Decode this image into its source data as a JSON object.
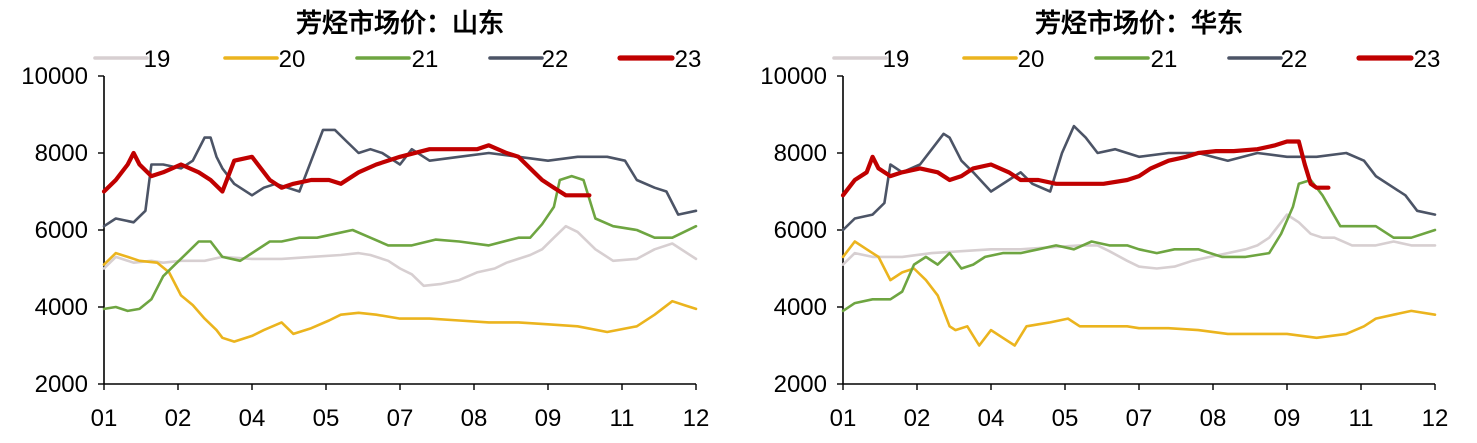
{
  "chart_data": [
    {
      "type": "line",
      "title": "芳烃市场价：山东",
      "xlabel": "",
      "ylabel": "",
      "ylim": [
        2000,
        10000
      ],
      "yticks": [
        "2000",
        "4000",
        "6000",
        "8000",
        "10000"
      ],
      "xticks": [
        "01",
        "02",
        "04",
        "05",
        "07",
        "08",
        "09",
        "11",
        "12"
      ],
      "legend_position": "top",
      "grid": false,
      "series": [
        {
          "name": "19",
          "color": "#d7cfd1",
          "width": 2.6,
          "x": [
            0,
            0.02,
            0.05,
            0.08,
            0.1,
            0.13,
            0.17,
            0.2,
            0.25,
            0.3,
            0.35,
            0.4,
            0.43,
            0.45,
            0.48,
            0.5,
            0.52,
            0.54,
            0.57,
            0.6,
            0.63,
            0.66,
            0.68,
            0.7,
            0.72,
            0.74,
            0.76,
            0.78,
            0.8,
            0.83,
            0.86,
            0.9,
            0.93,
            0.96,
            1.0
          ],
          "y": [
            5000,
            5300,
            5150,
            5200,
            5150,
            5200,
            5200,
            5300,
            5250,
            5250,
            5300,
            5350,
            5400,
            5350,
            5200,
            5000,
            4850,
            4550,
            4600,
            4700,
            4900,
            5000,
            5150,
            5250,
            5350,
            5500,
            5800,
            6100,
            5950,
            5500,
            5200,
            5250,
            5500,
            5650,
            5250
          ]
        },
        {
          "name": "20",
          "color": "#ebb41e",
          "width": 2.6,
          "x": [
            0,
            0.02,
            0.04,
            0.06,
            0.09,
            0.11,
            0.13,
            0.15,
            0.17,
            0.19,
            0.2,
            0.22,
            0.25,
            0.27,
            0.3,
            0.32,
            0.35,
            0.38,
            0.4,
            0.43,
            0.46,
            0.5,
            0.55,
            0.6,
            0.65,
            0.7,
            0.75,
            0.8,
            0.85,
            0.9,
            0.93,
            0.96,
            0.98,
            1.0
          ],
          "y": [
            5100,
            5400,
            5300,
            5200,
            5150,
            4900,
            4300,
            4050,
            3700,
            3400,
            3200,
            3100,
            3250,
            3400,
            3600,
            3300,
            3450,
            3650,
            3800,
            3850,
            3800,
            3700,
            3700,
            3650,
            3600,
            3600,
            3550,
            3500,
            3350,
            3500,
            3800,
            4150,
            4050,
            3950
          ]
        },
        {
          "name": "21",
          "color": "#6ea541",
          "width": 2.6,
          "x": [
            0,
            0.02,
            0.04,
            0.06,
            0.08,
            0.1,
            0.12,
            0.14,
            0.16,
            0.18,
            0.2,
            0.23,
            0.25,
            0.28,
            0.3,
            0.33,
            0.36,
            0.39,
            0.42,
            0.45,
            0.48,
            0.52,
            0.56,
            0.6,
            0.65,
            0.7,
            0.72,
            0.74,
            0.76,
            0.77,
            0.79,
            0.81,
            0.83,
            0.86,
            0.9,
            0.93,
            0.96,
            1.0
          ],
          "y": [
            3950,
            4000,
            3900,
            3950,
            4200,
            4800,
            5100,
            5400,
            5700,
            5700,
            5300,
            5200,
            5400,
            5700,
            5700,
            5800,
            5800,
            5900,
            6000,
            5800,
            5600,
            5600,
            5750,
            5700,
            5600,
            5800,
            5800,
            6150,
            6600,
            7300,
            7400,
            7300,
            6300,
            6100,
            6000,
            5800,
            5800,
            6100
          ]
        },
        {
          "name": "22",
          "color": "#4c5466",
          "width": 2.6,
          "x": [
            0,
            0.02,
            0.05,
            0.07,
            0.08,
            0.1,
            0.13,
            0.15,
            0.17,
            0.18,
            0.19,
            0.2,
            0.22,
            0.25,
            0.27,
            0.29,
            0.31,
            0.33,
            0.35,
            0.37,
            0.39,
            0.41,
            0.43,
            0.45,
            0.47,
            0.5,
            0.52,
            0.55,
            0.6,
            0.65,
            0.7,
            0.75,
            0.8,
            0.85,
            0.88,
            0.9,
            0.93,
            0.95,
            0.97,
            1.0
          ],
          "y": [
            6100,
            6300,
            6200,
            6500,
            7700,
            7700,
            7600,
            7800,
            8400,
            8400,
            7900,
            7600,
            7200,
            6900,
            7100,
            7200,
            7100,
            7000,
            7800,
            8600,
            8600,
            8300,
            8000,
            8100,
            8000,
            7700,
            8100,
            7800,
            7900,
            8000,
            7900,
            7800,
            7900,
            7900,
            7800,
            7300,
            7100,
            7000,
            6400,
            6500
          ]
        },
        {
          "name": "23",
          "color": "#c00000",
          "width": 4.2,
          "x": [
            0,
            0.02,
            0.04,
            0.05,
            0.06,
            0.08,
            0.1,
            0.13,
            0.16,
            0.18,
            0.2,
            0.22,
            0.25,
            0.28,
            0.3,
            0.32,
            0.35,
            0.38,
            0.4,
            0.43,
            0.46,
            0.5,
            0.55,
            0.6,
            0.63,
            0.65,
            0.68,
            0.7,
            0.72,
            0.74,
            0.76,
            0.78,
            0.8,
            0.82
          ],
          "y": [
            7000,
            7300,
            7700,
            8000,
            7700,
            7400,
            7500,
            7700,
            7500,
            7300,
            7000,
            7800,
            7900,
            7300,
            7100,
            7200,
            7300,
            7300,
            7200,
            7500,
            7700,
            7900,
            8100,
            8100,
            8100,
            8200,
            8000,
            7900,
            7600,
            7300,
            7100,
            6900,
            6900,
            6900
          ]
        }
      ]
    },
    {
      "type": "line",
      "title": "芳烃市场价：华东",
      "xlabel": "",
      "ylabel": "",
      "ylim": [
        2000,
        10000
      ],
      "yticks": [
        "2000",
        "4000",
        "6000",
        "8000",
        "10000"
      ],
      "xticks": [
        "01",
        "02",
        "04",
        "05",
        "07",
        "08",
        "09",
        "11",
        "12"
      ],
      "legend_position": "top",
      "grid": false,
      "series": [
        {
          "name": "19",
          "color": "#d7cfd1",
          "width": 2.6,
          "x": [
            0,
            0.02,
            0.05,
            0.1,
            0.15,
            0.2,
            0.25,
            0.3,
            0.35,
            0.4,
            0.43,
            0.45,
            0.48,
            0.5,
            0.53,
            0.56,
            0.59,
            0.62,
            0.65,
            0.68,
            0.7,
            0.72,
            0.74,
            0.75,
            0.77,
            0.79,
            0.81,
            0.83,
            0.86,
            0.9,
            0.93,
            0.96,
            1.0
          ],
          "y": [
            5100,
            5400,
            5300,
            5300,
            5400,
            5450,
            5500,
            5500,
            5550,
            5600,
            5600,
            5450,
            5200,
            5050,
            5000,
            5050,
            5200,
            5300,
            5400,
            5500,
            5600,
            5800,
            6200,
            6400,
            6200,
            5900,
            5800,
            5800,
            5600,
            5600,
            5700,
            5600,
            5600
          ]
        },
        {
          "name": "20",
          "color": "#ebb41e",
          "width": 2.6,
          "x": [
            0,
            0.02,
            0.04,
            0.06,
            0.08,
            0.1,
            0.12,
            0.14,
            0.16,
            0.18,
            0.19,
            0.21,
            0.23,
            0.25,
            0.27,
            0.29,
            0.31,
            0.33,
            0.35,
            0.38,
            0.4,
            0.43,
            0.45,
            0.48,
            0.5,
            0.55,
            0.6,
            0.65,
            0.7,
            0.75,
            0.8,
            0.85,
            0.88,
            0.9,
            0.93,
            0.96,
            1.0
          ],
          "y": [
            5300,
            5700,
            5500,
            5300,
            4700,
            4900,
            5000,
            4700,
            4300,
            3500,
            3400,
            3500,
            3000,
            3400,
            3200,
            3000,
            3500,
            3550,
            3600,
            3700,
            3500,
            3500,
            3500,
            3500,
            3450,
            3450,
            3400,
            3300,
            3300,
            3300,
            3200,
            3300,
            3500,
            3700,
            3800,
            3900,
            3800
          ]
        },
        {
          "name": "21",
          "color": "#6ea541",
          "width": 2.6,
          "x": [
            0,
            0.02,
            0.05,
            0.08,
            0.1,
            0.12,
            0.14,
            0.16,
            0.18,
            0.2,
            0.22,
            0.24,
            0.27,
            0.3,
            0.33,
            0.36,
            0.39,
            0.42,
            0.45,
            0.48,
            0.5,
            0.53,
            0.56,
            0.6,
            0.64,
            0.68,
            0.72,
            0.74,
            0.76,
            0.77,
            0.79,
            0.81,
            0.84,
            0.87,
            0.9,
            0.93,
            0.96,
            1.0
          ],
          "y": [
            3900,
            4100,
            4200,
            4200,
            4400,
            5100,
            5300,
            5100,
            5400,
            5000,
            5100,
            5300,
            5400,
            5400,
            5500,
            5600,
            5500,
            5700,
            5600,
            5600,
            5500,
            5400,
            5500,
            5500,
            5300,
            5300,
            5400,
            5900,
            6600,
            7200,
            7300,
            6900,
            6100,
            6100,
            6100,
            5800,
            5800,
            6000
          ]
        },
        {
          "name": "22",
          "color": "#4c5466",
          "width": 2.6,
          "x": [
            0,
            0.02,
            0.05,
            0.07,
            0.08,
            0.1,
            0.13,
            0.15,
            0.17,
            0.18,
            0.2,
            0.22,
            0.25,
            0.28,
            0.3,
            0.32,
            0.35,
            0.37,
            0.39,
            0.41,
            0.43,
            0.46,
            0.5,
            0.55,
            0.6,
            0.65,
            0.7,
            0.75,
            0.8,
            0.85,
            0.88,
            0.9,
            0.93,
            0.95,
            0.97,
            1.0
          ],
          "y": [
            6000,
            6300,
            6400,
            6700,
            7700,
            7500,
            7700,
            8100,
            8500,
            8400,
            7800,
            7500,
            7000,
            7300,
            7500,
            7200,
            7000,
            8000,
            8700,
            8400,
            8000,
            8100,
            7900,
            8000,
            8000,
            7800,
            8000,
            7900,
            7900,
            8000,
            7800,
            7400,
            7100,
            6900,
            6500,
            6400
          ]
        },
        {
          "name": "23",
          "color": "#c00000",
          "width": 4.2,
          "x": [
            0,
            0.02,
            0.04,
            0.05,
            0.06,
            0.08,
            0.1,
            0.13,
            0.16,
            0.18,
            0.2,
            0.22,
            0.25,
            0.28,
            0.3,
            0.33,
            0.36,
            0.4,
            0.44,
            0.48,
            0.5,
            0.52,
            0.55,
            0.58,
            0.6,
            0.63,
            0.66,
            0.7,
            0.73,
            0.75,
            0.77,
            0.78,
            0.79,
            0.8,
            0.82
          ],
          "y": [
            6900,
            7300,
            7500,
            7900,
            7600,
            7400,
            7500,
            7600,
            7500,
            7300,
            7400,
            7600,
            7700,
            7500,
            7300,
            7300,
            7200,
            7200,
            7200,
            7300,
            7400,
            7600,
            7800,
            7900,
            8000,
            8050,
            8050,
            8100,
            8200,
            8300,
            8300,
            7700,
            7200,
            7100,
            7100
          ]
        }
      ]
    }
  ]
}
